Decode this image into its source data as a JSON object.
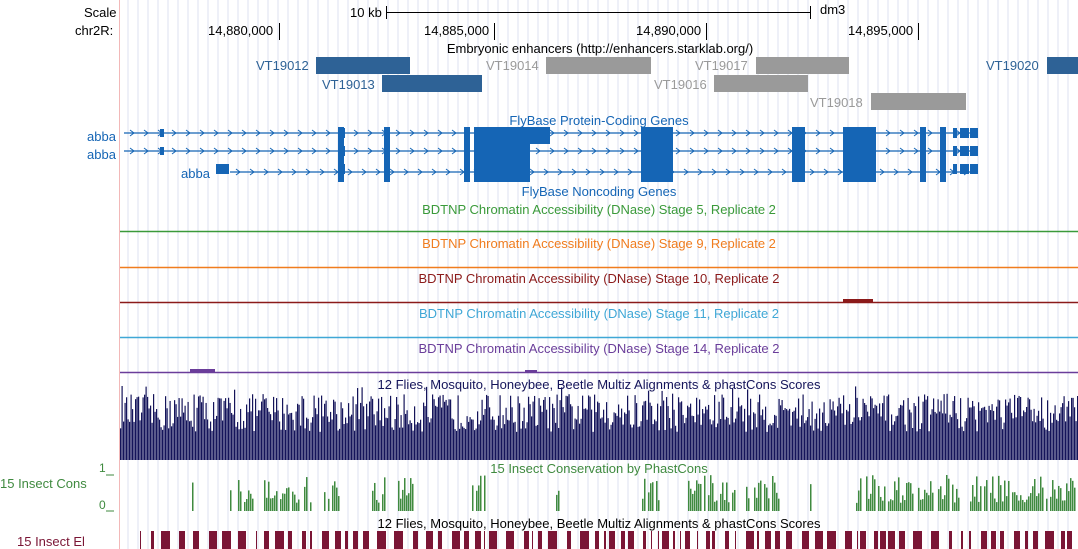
{
  "assembly": "dm3",
  "ruler": {
    "scale_label": "Scale",
    "scale_value": "10 kb",
    "chrom_label": "chr2R:",
    "ticks": [
      "14,880,000",
      "14,885,000",
      "14,890,000",
      "14,895,000"
    ]
  },
  "enhancers": {
    "title": "Embryonic enhancers (http://enhancers.starklab.org/)",
    "items": [
      {
        "name": "VT19012",
        "color": "#2e6296"
      },
      {
        "name": "VT19013",
        "color": "#2e6296"
      },
      {
        "name": "VT19014",
        "color": "#9a9a9a"
      },
      {
        "name": "VT19017",
        "color": "#9a9a9a"
      },
      {
        "name": "VT19016",
        "color": "#9a9a9a"
      },
      {
        "name": "VT19018",
        "color": "#9a9a9a"
      },
      {
        "name": "VT19020",
        "color": "#2e6296"
      }
    ]
  },
  "genes": {
    "coding_title": "FlyBase Protein-Coding Genes",
    "noncoding_title": "FlyBase Noncoding Genes",
    "transcripts": [
      "abba",
      "abba",
      "abba"
    ],
    "color": "#1565b5"
  },
  "dnase_tracks": [
    {
      "title": "BDTNP Chromatin Accessibility (DNase) Stage 5, Replicate 2",
      "color": "#3a9a3a"
    },
    {
      "title": "BDTNP Chromatin Accessibility (DNase) Stage 9, Replicate 2",
      "color": "#f07c1e"
    },
    {
      "title": "BDTNP Chromatin Accessibility (DNase) Stage 10, Replicate 2",
      "color": "#8b1a1a"
    },
    {
      "title": "BDTNP Chromatin Accessibility (DNase) Stage 11, Replicate 2",
      "color": "#3fa7d6"
    },
    {
      "title": "BDTNP Chromatin Accessibility (DNase) Stage 14, Replicate 2",
      "color": "#6a3d9a"
    }
  ],
  "conservation": {
    "multiz_title": "12 Flies, Mosquito, Honeybee, Beetle Multiz Alignments & phastCons Scores",
    "multiz_color": "#14145a",
    "phastcons_title": "15 Insect Conservation by PhastCons",
    "phastcons_label": "15 Insect Cons",
    "phastcons_color": "#3f8a3f",
    "y_max": "1",
    "y_min": "0",
    "elements_title": "12 Flies, Mosquito, Honeybee, Beetle Multiz Alignments & phastCons Scores",
    "elements_label": "15 Insect El",
    "elements_color": "#7a1535",
    "label_color": "#3f8a3f"
  }
}
